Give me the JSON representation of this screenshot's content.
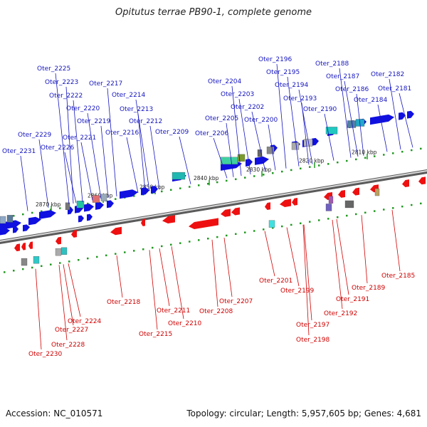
{
  "title": "Opitutus terrae PB90-1, complete genome",
  "footer": {
    "accession": "Accession: NC_010571",
    "summary": "Topology: circular; Length: 5,957,605 bp; Genes: 4,681"
  },
  "colors": {
    "forward": "#1010e0",
    "reverse": "#ee1010",
    "forward_label": "#1515c0",
    "reverse_label": "#d00000",
    "backbone": "#888888",
    "tick": "#229922"
  },
  "ruler_labels": [
    "2870 kbp",
    "2860 kbp",
    "2850 kbp",
    "2840 kbp",
    "2830 kbp",
    "2820 kbp",
    "2810 kbp"
  ],
  "top_genes": [
    "Oter_2231",
    "Oter_2229",
    "Oter_2226",
    "Oter_2225",
    "Oter_2223",
    "Oter_2222",
    "Oter_2221",
    "Oter_2220",
    "Oter_2219",
    "Oter_2217",
    "Oter_2216",
    "Oter_2214",
    "Oter_2213",
    "Oter_2212",
    "Oter_2209",
    "Oter_2206",
    "Oter_2205",
    "Oter_2204",
    "Oter_2203",
    "Oter_2202",
    "Oter_2200",
    "Oter_2196",
    "Oter_2195",
    "Oter_2194",
    "Oter_2193",
    "Oter_2190",
    "Oter_2188",
    "Oter_2187",
    "Oter_2186",
    "Oter_2184",
    "Oter_2182",
    "Oter_2181"
  ],
  "bottom_genes": [
    "Oter_2230",
    "Oter_2228",
    "Oter_2227",
    "Oter_2224",
    "Oter_2218",
    "Oter_2215",
    "Oter_2211",
    "Oter_2210",
    "Oter_2208",
    "Oter_2207",
    "Oter_2201",
    "Oter_2199",
    "Oter_2198",
    "Oter_2197",
    "Oter_2192",
    "Oter_2191",
    "Oter_2189",
    "Oter_2185"
  ]
}
